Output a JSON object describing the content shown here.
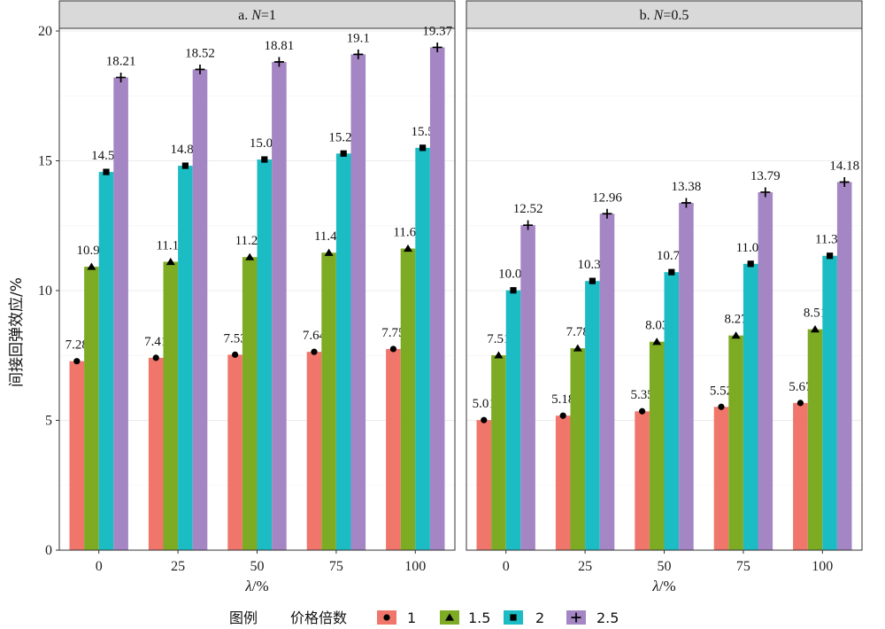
{
  "chart_data": [
    {
      "type": "bar",
      "panel_title": "a. N=1",
      "panel_prefix": "a. ",
      "panel_var": "N",
      "panel_suffix": "=1",
      "categories": [
        "0",
        "25",
        "50",
        "75",
        "100"
      ],
      "series": [
        {
          "name": "1",
          "values": [
            7.28,
            7.41,
            7.53,
            7.64,
            7.75
          ],
          "labels": [
            "7.28",
            "7.41",
            "7.53",
            "7.64",
            "7.75"
          ]
        },
        {
          "name": "1.5",
          "values": [
            10.92,
            11.11,
            11.29,
            11.46,
            11.62
          ],
          "labels": [
            "10.92",
            "11.11",
            "11.29",
            "11.46",
            "11.62"
          ]
        },
        {
          "name": "2",
          "values": [
            14.57,
            14.81,
            15.05,
            15.28,
            15.5
          ],
          "labels": [
            "14.57",
            "14.81",
            "15.05",
            "15.28",
            "15.5"
          ]
        },
        {
          "name": "2.5",
          "values": [
            18.21,
            18.52,
            18.81,
            19.1,
            19.37
          ],
          "labels": [
            "18.21",
            "18.52",
            "18.81",
            "19.1",
            "19.37"
          ]
        }
      ],
      "ylim": [
        0,
        20
      ],
      "yticks": [
        "0",
        "5",
        "10",
        "15",
        "20"
      ]
    },
    {
      "type": "bar",
      "panel_title": "b. N=0.5",
      "panel_prefix": "b. ",
      "panel_var": "N",
      "panel_suffix": "=0.5",
      "categories": [
        "0",
        "25",
        "50",
        "75",
        "100"
      ],
      "series": [
        {
          "name": "1",
          "values": [
            5.01,
            5.18,
            5.35,
            5.52,
            5.67
          ],
          "labels": [
            "5.01",
            "5.18",
            "5.35",
            "5.52",
            "5.67"
          ]
        },
        {
          "name": "1.5",
          "values": [
            7.51,
            7.78,
            8.03,
            8.27,
            8.51
          ],
          "labels": [
            "7.51",
            "7.78",
            "8.03",
            "8.27",
            "8.51"
          ]
        },
        {
          "name": "2",
          "values": [
            10.01,
            10.37,
            10.71,
            11.03,
            11.34
          ],
          "labels": [
            "10.01",
            "10.37",
            "10.71",
            "11.03",
            "11.34"
          ]
        },
        {
          "name": "2.5",
          "values": [
            12.52,
            12.96,
            13.38,
            13.79,
            14.18
          ],
          "labels": [
            "12.52",
            "12.96",
            "13.38",
            "13.79",
            "14.18"
          ]
        }
      ],
      "ylim": [
        0,
        20
      ],
      "yticks": [
        "0",
        "5",
        "10",
        "15",
        "20"
      ]
    }
  ],
  "ylabel": "间接回弹效应/%",
  "xlabel_var": "λ",
  "xlabel_unit": "/%",
  "legend": {
    "title": "图例",
    "subtitle": "价格倍数",
    "position": "bottom",
    "items": [
      {
        "label": "1",
        "color": "#f0766c",
        "marker": "circle"
      },
      {
        "label": "1.5",
        "color": "#7eab24",
        "marker": "triangle"
      },
      {
        "label": "2",
        "color": "#1cbcc4",
        "marker": "square"
      },
      {
        "label": "2.5",
        "color": "#a586c4",
        "marker": "plus"
      }
    ]
  },
  "grid": true,
  "panel_background": "#ffffff",
  "strip_background": "#d9d9d9"
}
